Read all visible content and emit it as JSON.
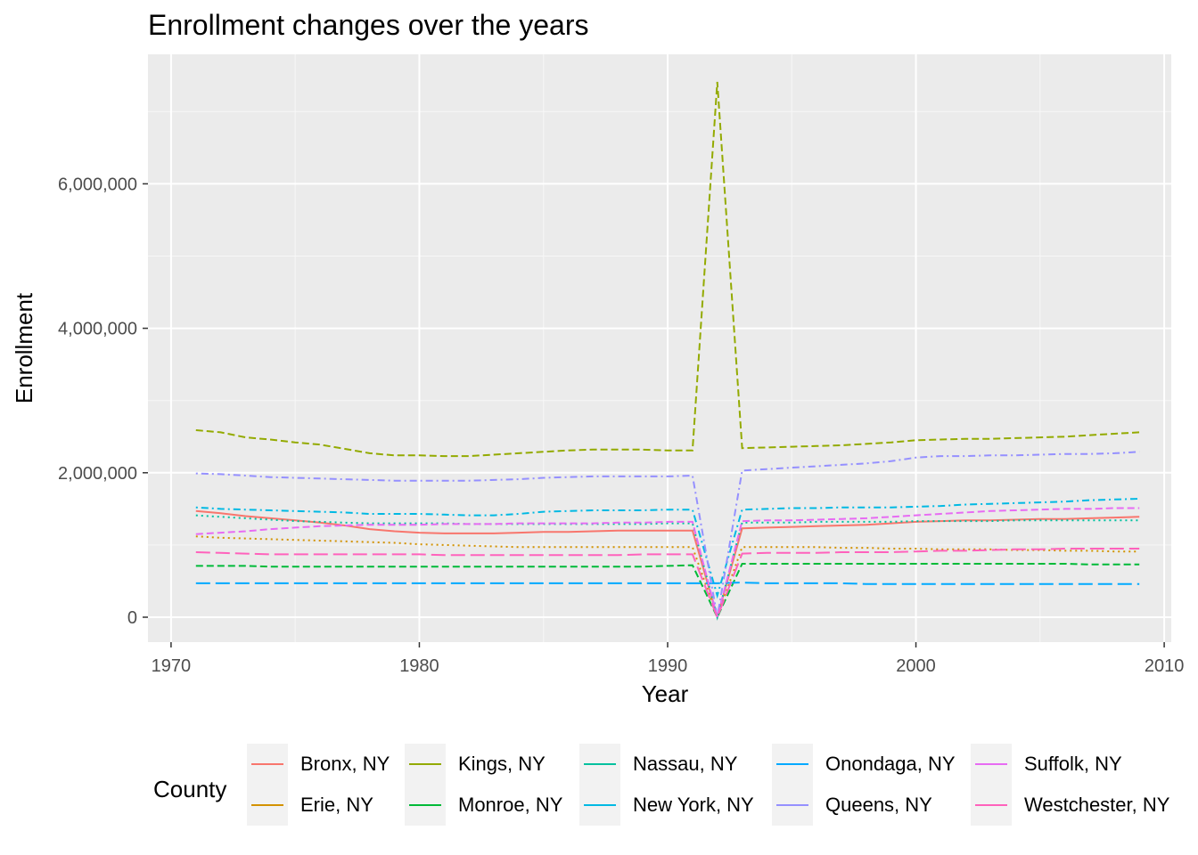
{
  "title": "Enrollment changes over the years",
  "chart_data": {
    "type": "line",
    "title": "Enrollment changes over the years",
    "xlabel": "Year",
    "ylabel": "Enrollment",
    "xlim": [
      1970,
      2010
    ],
    "ylim": [
      0,
      7500000
    ],
    "x_ticks": [
      1970,
      1980,
      1990,
      2000,
      2010
    ],
    "y_ticks": [
      0,
      2000000,
      4000000,
      6000000
    ],
    "y_tick_labels": [
      "0",
      "2,000,000",
      "4,000,000",
      "6,000,000"
    ],
    "grid": true,
    "legend_title": "County",
    "legend_position": "bottom",
    "x": [
      1971,
      1972,
      1973,
      1974,
      1975,
      1976,
      1977,
      1978,
      1979,
      1980,
      1981,
      1982,
      1983,
      1984,
      1985,
      1986,
      1987,
      1988,
      1989,
      1990,
      1991,
      1992,
      1993,
      1994,
      1995,
      1996,
      1997,
      1998,
      1999,
      2000,
      2001,
      2002,
      2003,
      2004,
      2005,
      2006,
      2007,
      2008,
      2009
    ],
    "series": [
      {
        "name": "Bronx, NY",
        "color": "#F8766D",
        "dash": "solid",
        "values": [
          1470000,
          1440000,
          1400000,
          1370000,
          1340000,
          1310000,
          1270000,
          1220000,
          1190000,
          1170000,
          1160000,
          1160000,
          1160000,
          1170000,
          1180000,
          1180000,
          1190000,
          1200000,
          1200000,
          1200000,
          1200000,
          0,
          1230000,
          1240000,
          1250000,
          1260000,
          1270000,
          1280000,
          1300000,
          1320000,
          1330000,
          1340000,
          1340000,
          1350000,
          1360000,
          1360000,
          1370000,
          1380000,
          1390000
        ]
      },
      {
        "name": "Erie, NY",
        "color": "#D39200",
        "dash": "dotted",
        "values": [
          1120000,
          1100000,
          1090000,
          1080000,
          1070000,
          1060000,
          1050000,
          1040000,
          1030000,
          1010000,
          1000000,
          990000,
          980000,
          970000,
          970000,
          970000,
          970000,
          970000,
          970000,
          970000,
          970000,
          0,
          970000,
          970000,
          970000,
          970000,
          960000,
          960000,
          950000,
          950000,
          940000,
          940000,
          940000,
          930000,
          930000,
          920000,
          920000,
          910000,
          910000
        ]
      },
      {
        "name": "Kings, NY",
        "color": "#93AA00",
        "dash": "dashed",
        "values": [
          2590000,
          2560000,
          2490000,
          2460000,
          2420000,
          2390000,
          2330000,
          2270000,
          2240000,
          2240000,
          2230000,
          2230000,
          2250000,
          2270000,
          2290000,
          2310000,
          2320000,
          2320000,
          2320000,
          2310000,
          2310000,
          7410000,
          2340000,
          2350000,
          2360000,
          2370000,
          2380000,
          2400000,
          2420000,
          2450000,
          2460000,
          2470000,
          2470000,
          2480000,
          2490000,
          2500000,
          2520000,
          2540000,
          2560000
        ]
      },
      {
        "name": "Monroe, NY",
        "color": "#00BA38",
        "dash": "dashed",
        "values": [
          710000,
          710000,
          710000,
          700000,
          700000,
          700000,
          700000,
          700000,
          700000,
          700000,
          700000,
          700000,
          700000,
          700000,
          700000,
          700000,
          700000,
          700000,
          700000,
          710000,
          720000,
          0,
          740000,
          740000,
          740000,
          740000,
          740000,
          740000,
          740000,
          740000,
          740000,
          740000,
          740000,
          740000,
          740000,
          740000,
          730000,
          730000,
          730000
        ]
      },
      {
        "name": "Nassau, NY",
        "color": "#00C19F",
        "dash": "dotted",
        "values": [
          1410000,
          1390000,
          1370000,
          1350000,
          1330000,
          1320000,
          1310000,
          1300000,
          1300000,
          1300000,
          1300000,
          1290000,
          1290000,
          1290000,
          1290000,
          1290000,
          1290000,
          1290000,
          1290000,
          1300000,
          1300000,
          0,
          1310000,
          1310000,
          1310000,
          1320000,
          1320000,
          1320000,
          1320000,
          1330000,
          1330000,
          1330000,
          1330000,
          1340000,
          1340000,
          1340000,
          1340000,
          1340000,
          1340000
        ]
      },
      {
        "name": "New York, NY",
        "color": "#00B9E3",
        "dash": "dotdash",
        "values": [
          1520000,
          1500000,
          1490000,
          1480000,
          1470000,
          1460000,
          1450000,
          1430000,
          1430000,
          1430000,
          1420000,
          1410000,
          1410000,
          1430000,
          1460000,
          1470000,
          1480000,
          1480000,
          1480000,
          1490000,
          1490000,
          300000,
          1490000,
          1500000,
          1510000,
          1510000,
          1520000,
          1520000,
          1520000,
          1530000,
          1540000,
          1560000,
          1570000,
          1580000,
          1590000,
          1600000,
          1620000,
          1630000,
          1640000
        ]
      },
      {
        "name": "Onondaga, NY",
        "color": "#00A9FF",
        "dash": "longdash",
        "values": [
          470000,
          470000,
          470000,
          470000,
          470000,
          470000,
          470000,
          470000,
          470000,
          470000,
          470000,
          470000,
          470000,
          470000,
          470000,
          470000,
          470000,
          470000,
          470000,
          470000,
          470000,
          470000,
          480000,
          470000,
          470000,
          470000,
          470000,
          460000,
          460000,
          460000,
          460000,
          460000,
          460000,
          460000,
          460000,
          460000,
          460000,
          460000,
          460000
        ]
      },
      {
        "name": "Queens, NY",
        "color": "#9590FF",
        "dash": "dotdash",
        "values": [
          1990000,
          1980000,
          1960000,
          1940000,
          1930000,
          1920000,
          1910000,
          1900000,
          1890000,
          1890000,
          1890000,
          1890000,
          1900000,
          1910000,
          1930000,
          1940000,
          1950000,
          1950000,
          1950000,
          1950000,
          1960000,
          0,
          2030000,
          2050000,
          2070000,
          2090000,
          2110000,
          2130000,
          2160000,
          2210000,
          2230000,
          2230000,
          2240000,
          2240000,
          2250000,
          2260000,
          2260000,
          2270000,
          2290000
        ]
      },
      {
        "name": "Suffolk, NY",
        "color": "#E76BF3",
        "dash": "dashed",
        "values": [
          1150000,
          1170000,
          1190000,
          1220000,
          1240000,
          1260000,
          1270000,
          1280000,
          1280000,
          1280000,
          1290000,
          1290000,
          1290000,
          1300000,
          1300000,
          1300000,
          1300000,
          1310000,
          1310000,
          1320000,
          1320000,
          0,
          1330000,
          1340000,
          1340000,
          1350000,
          1360000,
          1370000,
          1390000,
          1410000,
          1430000,
          1450000,
          1470000,
          1480000,
          1490000,
          1500000,
          1500000,
          1510000,
          1510000
        ]
      },
      {
        "name": "Westchester, NY",
        "color": "#FF62BC",
        "dash": "longdash",
        "values": [
          900000,
          890000,
          880000,
          870000,
          870000,
          870000,
          870000,
          870000,
          870000,
          870000,
          860000,
          860000,
          860000,
          860000,
          860000,
          860000,
          860000,
          860000,
          870000,
          870000,
          870000,
          0,
          880000,
          890000,
          890000,
          890000,
          900000,
          900000,
          900000,
          910000,
          920000,
          920000,
          930000,
          940000,
          940000,
          950000,
          950000,
          950000,
          950000
        ]
      }
    ]
  }
}
